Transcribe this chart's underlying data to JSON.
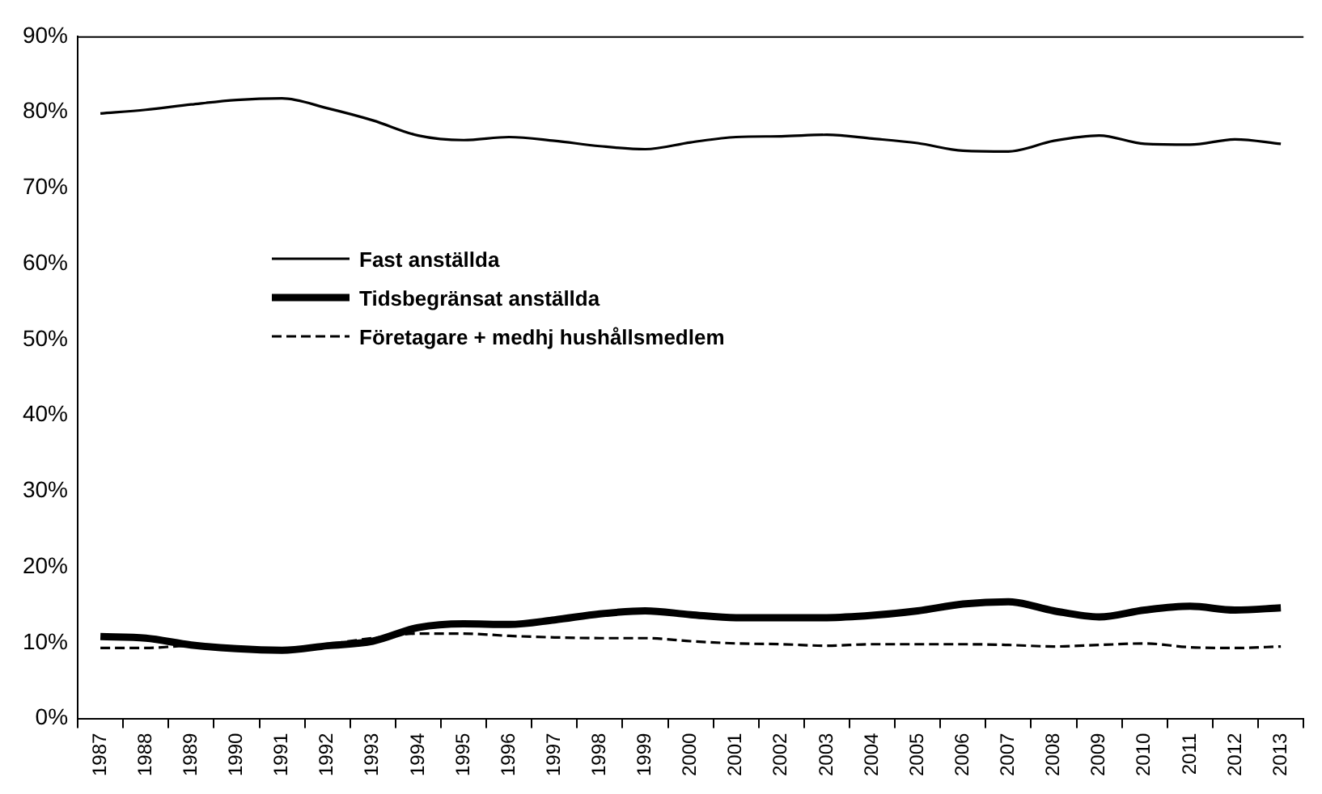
{
  "chart_data": {
    "type": "line",
    "categories": [
      "1987",
      "1988",
      "1989",
      "1990",
      "1991",
      "1992",
      "1993",
      "1994",
      "1995",
      "1996",
      "1997",
      "1998",
      "1999",
      "2000",
      "2001",
      "2002",
      "2003",
      "2004",
      "2005",
      "2006",
      "2007",
      "2008",
      "2009",
      "2010",
      "2011",
      "2012",
      "2013"
    ],
    "series": [
      {
        "name": "Fast anställda",
        "color": "#000000",
        "line_style": "solid",
        "values": [
          79.8,
          80.3,
          81.0,
          81.6,
          81.8,
          80.5,
          78.9,
          76.9,
          76.3,
          76.7,
          76.2,
          75.5,
          75.1,
          76.0,
          76.7,
          76.8,
          77.0,
          76.5,
          75.9,
          74.9,
          74.8,
          76.2,
          76.9,
          75.8,
          75.7,
          76.4,
          75.8
        ]
      },
      {
        "name": "Tidsbegränsat anställda",
        "color": "#000000",
        "line_style": "solid",
        "values": [
          10.8,
          10.6,
          9.7,
          9.2,
          9.0,
          9.6,
          10.2,
          12.0,
          12.5,
          12.4,
          13.0,
          13.8,
          14.2,
          13.7,
          13.3,
          13.3,
          13.3,
          13.6,
          14.2,
          15.1,
          15.4,
          14.2,
          13.4,
          14.3,
          14.8,
          14.3,
          14.6
        ]
      },
      {
        "name": "Företagare + medhj hushållsmedlem",
        "color": "#000000",
        "line_style": "dashed",
        "values": [
          9.3,
          9.3,
          9.6,
          9.3,
          9.1,
          9.8,
          10.6,
          11.2,
          11.2,
          10.9,
          10.7,
          10.6,
          10.6,
          10.2,
          9.9,
          9.8,
          9.6,
          9.8,
          9.8,
          9.8,
          9.7,
          9.5,
          9.7,
          9.9,
          9.4,
          9.3,
          9.5
        ]
      }
    ],
    "ylim": [
      0,
      90
    ],
    "yticks": [
      {
        "value": 0,
        "label": "0%"
      },
      {
        "value": 10,
        "label": "10%"
      },
      {
        "value": 20,
        "label": "20%"
      },
      {
        "value": 30,
        "label": "30%"
      },
      {
        "value": 40,
        "label": "40%"
      },
      {
        "value": 50,
        "label": "50%"
      },
      {
        "value": 60,
        "label": "60%"
      },
      {
        "value": 70,
        "label": "70%"
      },
      {
        "value": 80,
        "label": "80%"
      },
      {
        "value": 90,
        "label": "90%"
      }
    ],
    "grid": false,
    "legend": "top left",
    "marker": "none"
  }
}
